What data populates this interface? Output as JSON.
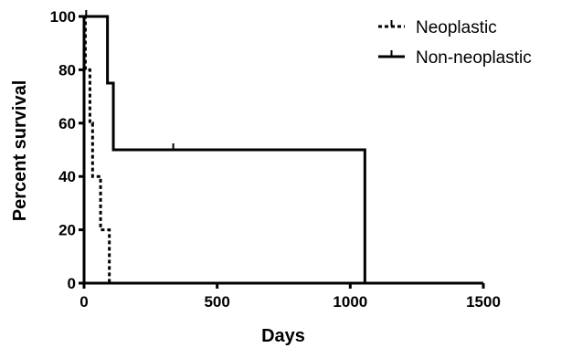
{
  "chart_data": {
    "type": "line",
    "subtype": "kaplan-meier-step",
    "xlabel": "Days",
    "ylabel": "Percent survival",
    "xlim": [
      0,
      1500
    ],
    "ylim": [
      0,
      100
    ],
    "x_ticks": [
      0,
      500,
      1000,
      1500
    ],
    "y_ticks": [
      0,
      20,
      40,
      60,
      80,
      100
    ],
    "grid": false,
    "legend_position": "top-right",
    "series": [
      {
        "name": "Neoplastic",
        "line_style": "dotted",
        "color": "#000000",
        "steps": [
          [
            0,
            100
          ],
          [
            5,
            80
          ],
          [
            22,
            60
          ],
          [
            32,
            40
          ],
          [
            62,
            20
          ],
          [
            95,
            0
          ]
        ],
        "censored": [
          [
            8,
            100
          ]
        ]
      },
      {
        "name": "Non-neoplastic",
        "line_style": "solid",
        "color": "#000000",
        "steps": [
          [
            0,
            100
          ],
          [
            88,
            75
          ],
          [
            110,
            50
          ],
          [
            1055,
            0
          ]
        ],
        "censored": [
          [
            335,
            50
          ]
        ]
      }
    ]
  }
}
